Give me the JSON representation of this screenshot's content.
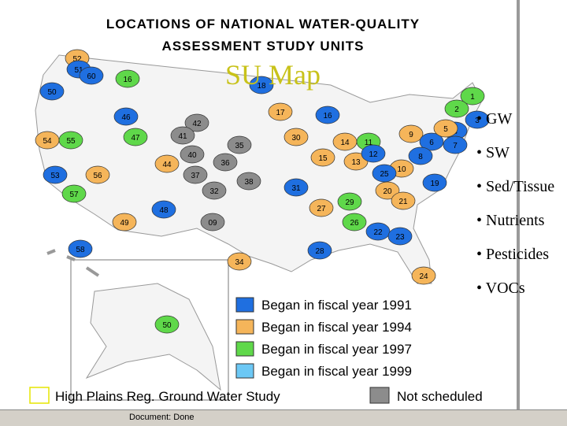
{
  "map": {
    "title_lines": [
      "LOCATIONS OF NATIONAL WATER-QUALITY",
      "ASSESSMENT STUDY UNITS"
    ],
    "units": [
      "52",
      "51",
      "60",
      "16",
      "50",
      "18",
      "1",
      "46",
      "42",
      "17",
      "16",
      "2",
      "3",
      "54",
      "55",
      "47",
      "41",
      "35",
      "30",
      "14",
      "11",
      "9",
      "6",
      "4",
      "7",
      "5",
      "8",
      "53",
      "44",
      "40",
      "36",
      "15",
      "13",
      "12",
      "10",
      "25",
      "56",
      "37",
      "38",
      "31",
      "19",
      "20",
      "21",
      "57",
      "48",
      "32",
      "27",
      "29",
      "49",
      "09",
      "26",
      "22",
      "23",
      "28",
      "34",
      "24",
      "58",
      "50"
    ]
  },
  "slide": {
    "title": "SU Map",
    "bullets": [
      "• GW",
      "• SW",
      "• Sed/Tissue",
      "• Nutrients",
      "• Pesticides",
      "• VOCs"
    ]
  },
  "legend": {
    "items": [
      {
        "label": "Began in fiscal year 1991",
        "color": "#1f6fe0"
      },
      {
        "label": "Began in fiscal year 1994",
        "color": "#f5b55a"
      },
      {
        "label": "Began in fiscal year 1997",
        "color": "#5fd84a"
      },
      {
        "label": "Began in fiscal year 1999",
        "color": "#6cc8f5"
      }
    ],
    "high_plains": {
      "label": "High Plains Reg. Ground Water Study",
      "color": "#e6e600"
    },
    "not_scheduled": {
      "label": "Not scheduled",
      "color": "#8c8c8c"
    }
  },
  "status_bar": {
    "text": "Document: Done"
  }
}
